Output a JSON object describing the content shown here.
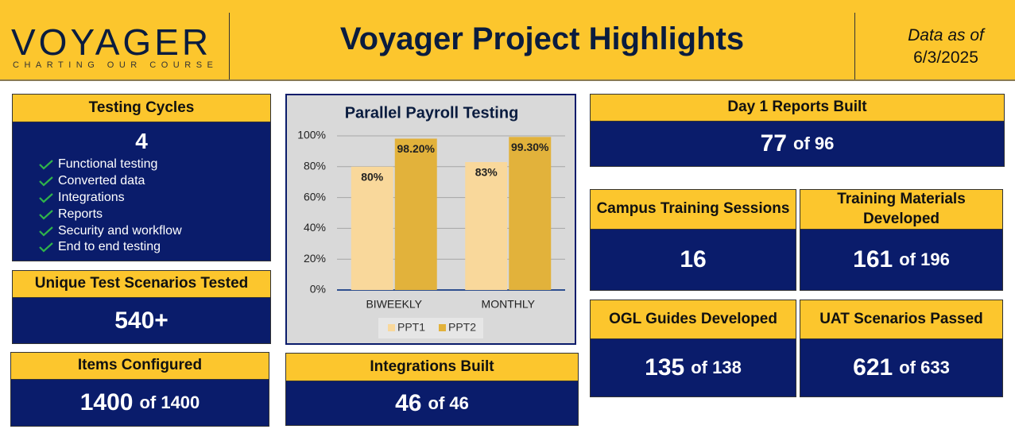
{
  "header": {
    "logo": "VOYAGER",
    "tagline": "CHARTING OUR COURSE",
    "title": "Voyager Project Highlights",
    "date_label": "Data as of",
    "date": "6/3/2025"
  },
  "testing_cycles": {
    "title": "Testing Cycles",
    "value": "4",
    "items": [
      "Functional testing",
      "Converted data",
      "Integrations",
      "Reports",
      "Security and workflow",
      "End to end testing"
    ]
  },
  "cards": [
    {
      "title": "Unique Test Scenarios Tested",
      "value": "540+"
    },
    {
      "title": "Items Configured",
      "value": "1400",
      "suffix": "of 1400"
    },
    {
      "title": "Integrations Built",
      "value": "46",
      "suffix": "of 46"
    },
    {
      "title": "Day 1 Reports Built",
      "value": "77",
      "suffix": "of 96"
    },
    {
      "title": "Campus Training Sessions",
      "value": "16"
    },
    {
      "title": "Training Materials Developed",
      "value": "161",
      "suffix": "of 196"
    },
    {
      "title": "OGL Guides Developed",
      "value": "135",
      "suffix": "of 138"
    },
    {
      "title": "UAT Scenarios Passed",
      "value": "621",
      "suffix": "of 633"
    }
  ],
  "chart_data": {
    "type": "bar",
    "title": "Parallel Payroll Testing",
    "categories": [
      "BIWEEKLY",
      "MONTHLY"
    ],
    "series": [
      {
        "name": "PPT1",
        "color": "#f9d89b",
        "values": [
          80,
          83
        ],
        "value_labels": [
          "80%",
          "83%"
        ]
      },
      {
        "name": "PPT2",
        "color": "#e2b23b",
        "values": [
          98.2,
          99.3
        ],
        "value_labels": [
          "98.20%",
          "99.30%"
        ]
      }
    ],
    "ylim": [
      0,
      100
    ],
    "yticks": [
      {
        "value": 0,
        "label": "0%"
      },
      {
        "value": 20,
        "label": "20%"
      },
      {
        "value": 40,
        "label": "40%"
      },
      {
        "value": 60,
        "label": "60%"
      },
      {
        "value": 80,
        "label": "80%"
      },
      {
        "value": 100,
        "label": "100%"
      }
    ],
    "grid": true,
    "legend": "bottom"
  }
}
